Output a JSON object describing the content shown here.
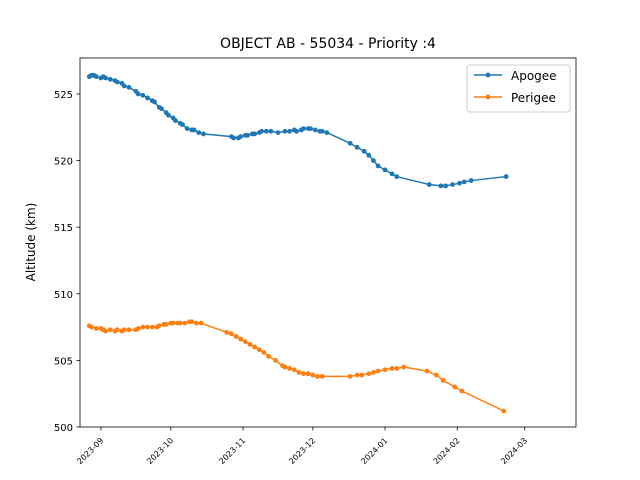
{
  "chart_data": {
    "type": "line",
    "title": "OBJECT AB - 55034 - Priority :4",
    "xlabel": "",
    "ylabel": "Altitude (km)",
    "x_type": "date",
    "xlim": [
      "2023-08-23",
      "2024-03-23"
    ],
    "ylim": [
      500,
      527.7
    ],
    "x_ticks": [
      "2023-09",
      "2023-10",
      "2023-11",
      "2023-12",
      "2024-01",
      "2024-02",
      "2024-03"
    ],
    "y_ticks": [
      500,
      505,
      510,
      515,
      520,
      525
    ],
    "grid": false,
    "legend_position": "top-right",
    "series": [
      {
        "name": "Apogee",
        "color": "#1f77b4",
        "points": [
          [
            "2023-08-27",
            526.3
          ],
          [
            "2023-08-28",
            526.4
          ],
          [
            "2023-08-29",
            526.4
          ],
          [
            "2023-08-30",
            526.3
          ],
          [
            "2023-09-01",
            526.2
          ],
          [
            "2023-09-02",
            526.3
          ],
          [
            "2023-09-03",
            526.2
          ],
          [
            "2023-09-05",
            526.1
          ],
          [
            "2023-09-07",
            526.0
          ],
          [
            "2023-09-08",
            525.9
          ],
          [
            "2023-09-10",
            525.8
          ],
          [
            "2023-09-11",
            525.6
          ],
          [
            "2023-09-13",
            525.5
          ],
          [
            "2023-09-16",
            525.2
          ],
          [
            "2023-09-17",
            525.0
          ],
          [
            "2023-09-19",
            524.9
          ],
          [
            "2023-09-21",
            524.7
          ],
          [
            "2023-09-23",
            524.5
          ],
          [
            "2023-09-24",
            524.4
          ],
          [
            "2023-09-26",
            524.0
          ],
          [
            "2023-09-27",
            523.9
          ],
          [
            "2023-09-29",
            523.6
          ],
          [
            "2023-09-30",
            523.4
          ],
          [
            "2023-10-02",
            523.2
          ],
          [
            "2023-10-03",
            523.0
          ],
          [
            "2023-10-05",
            522.8
          ],
          [
            "2023-10-06",
            522.7
          ],
          [
            "2023-10-08",
            522.4
          ],
          [
            "2023-10-10",
            522.3
          ],
          [
            "2023-10-11",
            522.3
          ],
          [
            "2023-10-13",
            522.1
          ],
          [
            "2023-10-15",
            522.0
          ],
          [
            "2023-10-27",
            521.8
          ],
          [
            "2023-10-28",
            521.7
          ],
          [
            "2023-10-30",
            521.7
          ],
          [
            "2023-10-31",
            521.8
          ],
          [
            "2023-11-02",
            521.9
          ],
          [
            "2023-11-03",
            521.9
          ],
          [
            "2023-11-05",
            522.0
          ],
          [
            "2023-11-06",
            522.0
          ],
          [
            "2023-11-08",
            522.1
          ],
          [
            "2023-11-09",
            522.2
          ],
          [
            "2023-11-11",
            522.2
          ],
          [
            "2023-11-13",
            522.2
          ],
          [
            "2023-11-16",
            522.1
          ],
          [
            "2023-11-19",
            522.2
          ],
          [
            "2023-11-21",
            522.2
          ],
          [
            "2023-11-23",
            522.3
          ],
          [
            "2023-11-24",
            522.2
          ],
          [
            "2023-11-26",
            522.3
          ],
          [
            "2023-11-27",
            522.4
          ],
          [
            "2023-11-29",
            522.4
          ],
          [
            "2023-11-30",
            522.4
          ],
          [
            "2023-12-02",
            522.3
          ],
          [
            "2023-12-04",
            522.2
          ],
          [
            "2023-12-05",
            522.2
          ],
          [
            "2023-12-07",
            522.1
          ],
          [
            "2023-12-17",
            521.3
          ],
          [
            "2023-12-20",
            521.0
          ],
          [
            "2023-12-23",
            520.7
          ],
          [
            "2023-12-25",
            520.4
          ],
          [
            "2023-12-27",
            520.0
          ],
          [
            "2023-12-29",
            519.6
          ],
          [
            "2024-01-01",
            519.3
          ],
          [
            "2024-01-04",
            519.0
          ],
          [
            "2024-01-06",
            518.8
          ],
          [
            "2024-01-20",
            518.2
          ],
          [
            "2024-01-25",
            518.1
          ],
          [
            "2024-01-27",
            518.1
          ],
          [
            "2024-01-30",
            518.2
          ],
          [
            "2024-02-02",
            518.3
          ],
          [
            "2024-02-04",
            518.4
          ],
          [
            "2024-02-07",
            518.5
          ],
          [
            "2024-02-22",
            518.8
          ]
        ]
      },
      {
        "name": "Perigee",
        "color": "#ff7f0e",
        "points": [
          [
            "2023-08-27",
            507.6
          ],
          [
            "2023-08-28",
            507.5
          ],
          [
            "2023-08-30",
            507.4
          ],
          [
            "2023-09-01",
            507.4
          ],
          [
            "2023-09-02",
            507.3
          ],
          [
            "2023-09-03",
            507.2
          ],
          [
            "2023-09-05",
            507.3
          ],
          [
            "2023-09-07",
            507.2
          ],
          [
            "2023-09-08",
            507.3
          ],
          [
            "2023-09-10",
            507.2
          ],
          [
            "2023-09-11",
            507.3
          ],
          [
            "2023-09-13",
            507.3
          ],
          [
            "2023-09-16",
            507.3
          ],
          [
            "2023-09-17",
            507.4
          ],
          [
            "2023-09-19",
            507.5
          ],
          [
            "2023-09-21",
            507.5
          ],
          [
            "2023-09-23",
            507.5
          ],
          [
            "2023-09-25",
            507.5
          ],
          [
            "2023-09-26",
            507.6
          ],
          [
            "2023-09-28",
            507.7
          ],
          [
            "2023-09-29",
            507.7
          ],
          [
            "2023-10-01",
            507.8
          ],
          [
            "2023-10-02",
            507.8
          ],
          [
            "2023-10-04",
            507.8
          ],
          [
            "2023-10-05",
            507.8
          ],
          [
            "2023-10-07",
            507.8
          ],
          [
            "2023-10-09",
            507.9
          ],
          [
            "2023-10-10",
            507.9
          ],
          [
            "2023-10-12",
            507.8
          ],
          [
            "2023-10-14",
            507.8
          ],
          [
            "2023-10-25",
            507.1
          ],
          [
            "2023-10-27",
            507.0
          ],
          [
            "2023-10-29",
            506.8
          ],
          [
            "2023-10-31",
            506.6
          ],
          [
            "2023-11-02",
            506.4
          ],
          [
            "2023-11-04",
            506.2
          ],
          [
            "2023-11-06",
            506.0
          ],
          [
            "2023-11-08",
            505.8
          ],
          [
            "2023-11-10",
            505.6
          ],
          [
            "2023-11-12",
            505.3
          ],
          [
            "2023-11-15",
            505.0
          ],
          [
            "2023-11-18",
            504.6
          ],
          [
            "2023-11-19",
            504.5
          ],
          [
            "2023-11-21",
            504.4
          ],
          [
            "2023-11-23",
            504.3
          ],
          [
            "2023-11-25",
            504.1
          ],
          [
            "2023-11-27",
            504.0
          ],
          [
            "2023-11-29",
            504.0
          ],
          [
            "2023-12-01",
            503.9
          ],
          [
            "2023-12-03",
            503.8
          ],
          [
            "2023-12-05",
            503.8
          ],
          [
            "2023-12-17",
            503.8
          ],
          [
            "2023-12-20",
            503.9
          ],
          [
            "2023-12-22",
            503.9
          ],
          [
            "2023-12-25",
            504.0
          ],
          [
            "2023-12-27",
            504.1
          ],
          [
            "2023-12-29",
            504.2
          ],
          [
            "2024-01-01",
            504.3
          ],
          [
            "2024-01-04",
            504.4
          ],
          [
            "2024-01-06",
            504.4
          ],
          [
            "2024-01-09",
            504.5
          ],
          [
            "2024-01-19",
            504.2
          ],
          [
            "2024-01-23",
            503.9
          ],
          [
            "2024-01-26",
            503.5
          ],
          [
            "2024-01-31",
            503.0
          ],
          [
            "2024-02-03",
            502.7
          ],
          [
            "2024-02-21",
            501.2
          ]
        ]
      }
    ]
  }
}
